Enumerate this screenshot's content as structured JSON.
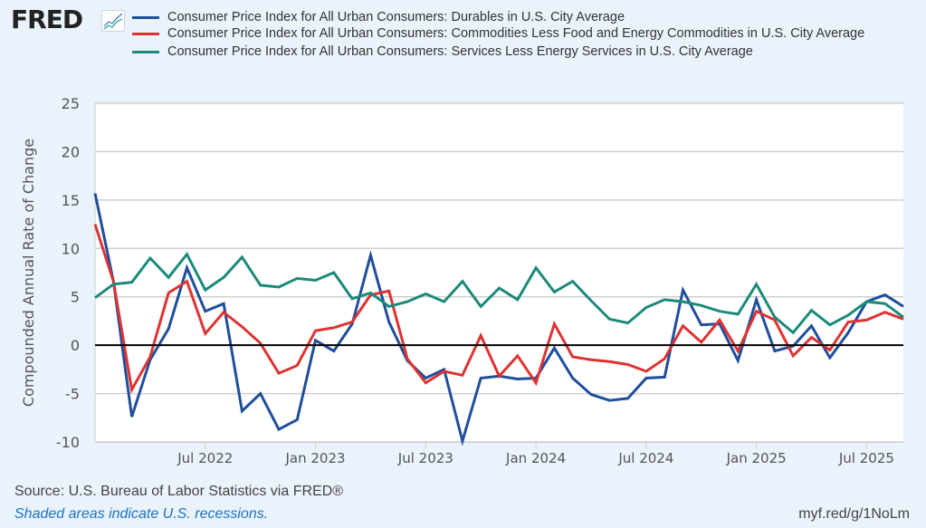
{
  "header": {
    "logo_text": "FRED",
    "logo_icon": "line-chart-icon"
  },
  "legend": [
    {
      "label": "Consumer Price Index for All Urban Consumers: Durables in U.S. City Average",
      "color": "#1f4e9b"
    },
    {
      "label": "Consumer Price Index for All Urban Consumers: Commodities Less Food and Energy Commodities in U.S. City Average",
      "color": "#dd3333"
    },
    {
      "label": "Consumer Price Index for All Urban Consumers: Services Less Energy Services in U.S. City Average",
      "color": "#1b8a7a"
    }
  ],
  "footer": {
    "source": "Source: U.S. Bureau of Labor Statistics via FRED®",
    "note": "Shaded areas indicate U.S. recessions.",
    "link": "myf.red/g/1NoLm"
  },
  "chart_data": {
    "type": "line",
    "title": "",
    "xlabel": "",
    "ylabel": "Compounded Annual Rate of Change",
    "ylim": [
      -10,
      25
    ],
    "yticks": [
      25,
      20,
      15,
      10,
      5,
      0,
      -5,
      -10
    ],
    "x_start": "2022-01",
    "x_end": "2025-09",
    "xticks": [
      {
        "label": "Jul 2022",
        "index": 6
      },
      {
        "label": "Jan 2023",
        "index": 12
      },
      {
        "label": "Jul 2023",
        "index": 18
      },
      {
        "label": "Jan 2024",
        "index": 24
      },
      {
        "label": "Jul 2024",
        "index": 30
      },
      {
        "label": "Jan 2025",
        "index": 36
      },
      {
        "label": "Jul 2025",
        "index": 42
      }
    ],
    "grid": true,
    "zero_line": true,
    "legend_position": "top",
    "x": [
      "2022-01",
      "2022-02",
      "2022-03",
      "2022-04",
      "2022-05",
      "2022-06",
      "2022-07",
      "2022-08",
      "2022-09",
      "2022-10",
      "2022-11",
      "2022-12",
      "2023-01",
      "2023-02",
      "2023-03",
      "2023-04",
      "2023-05",
      "2023-06",
      "2023-07",
      "2023-08",
      "2023-09",
      "2023-10",
      "2023-11",
      "2023-12",
      "2024-01",
      "2024-02",
      "2024-03",
      "2024-04",
      "2024-05",
      "2024-06",
      "2024-07",
      "2024-08",
      "2024-09",
      "2024-10",
      "2024-11",
      "2024-12",
      "2025-01",
      "2025-02",
      "2025-03",
      "2025-04",
      "2025-05",
      "2025-06",
      "2025-07",
      "2025-08",
      "2025-09"
    ],
    "series": [
      {
        "name": "Durables",
        "color": "#1f4e9b",
        "values": [
          15.7,
          6.6,
          -7.4,
          -1.5,
          1.7,
          8.0,
          3.5,
          4.3,
          -6.8,
          -5.0,
          -8.7,
          -7.7,
          0.5,
          -0.6,
          2.2,
          9.3,
          2.4,
          -1.6,
          -3.4,
          -2.5,
          -9.9,
          -3.4,
          -3.2,
          -3.5,
          -3.4,
          -0.3,
          -3.4,
          -5.1,
          -5.7,
          -5.5,
          -3.4,
          -3.3,
          5.7,
          2.1,
          2.2,
          -1.6,
          4.7,
          -0.6,
          -0.1,
          2.0,
          -1.3,
          1.3,
          4.5,
          5.2,
          4.0
        ]
      },
      {
        "name": "Commodities Less Food and Energy Commodities",
        "color": "#dd3333",
        "values": [
          12.5,
          6.6,
          -4.6,
          -1.2,
          5.4,
          6.6,
          1.2,
          3.4,
          1.9,
          0.2,
          -2.9,
          -2.1,
          1.5,
          1.8,
          2.4,
          5.2,
          5.6,
          -1.4,
          -3.9,
          -2.7,
          -3.1,
          1.0,
          -3.2,
          -1.1,
          -3.9,
          2.2,
          -1.2,
          -1.5,
          -1.7,
          -2.0,
          -2.7,
          -1.4,
          2.0,
          0.3,
          2.6,
          -0.6,
          3.5,
          2.6,
          -1.1,
          0.8,
          -0.5,
          2.4,
          2.6,
          3.4,
          2.7
        ]
      },
      {
        "name": "Services Less Energy Services",
        "color": "#1b8a7a",
        "values": [
          4.9,
          6.3,
          6.5,
          9.0,
          7.0,
          9.4,
          5.7,
          7.0,
          9.1,
          6.2,
          6.0,
          6.9,
          6.7,
          7.5,
          4.8,
          5.4,
          4.0,
          4.5,
          5.3,
          4.5,
          6.6,
          4.0,
          5.9,
          4.7,
          8.0,
          5.5,
          6.6,
          4.6,
          2.7,
          2.3,
          3.9,
          4.7,
          4.5,
          4.1,
          3.5,
          3.2,
          6.3,
          2.9,
          1.3,
          3.6,
          2.1,
          3.1,
          4.5,
          4.3,
          2.9
        ]
      }
    ]
  }
}
